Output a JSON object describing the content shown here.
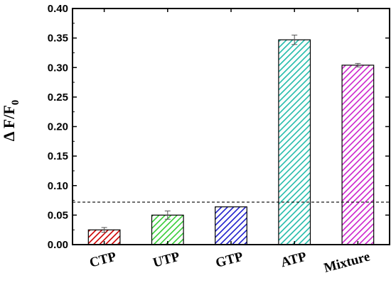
{
  "chart_data": {
    "type": "bar",
    "categories": [
      "CTP",
      "UTP",
      "GTP",
      "ATP",
      "Mixture"
    ],
    "values": [
      0.025,
      0.05,
      0.064,
      0.347,
      0.304
    ],
    "errors": [
      0.004,
      0.007,
      0.0,
      0.008,
      0.003
    ],
    "colors": [
      "#cc0000",
      "#33cc33",
      "#1a1acc",
      "#22bbaa",
      "#cc22cc"
    ],
    "ylabel_main": "Δ F/F",
    "ylabel_sub": "0",
    "ylim": [
      0.0,
      0.4
    ],
    "yticks": [
      "0.00",
      "0.05",
      "0.10",
      "0.15",
      "0.20",
      "0.25",
      "0.30",
      "0.35",
      "0.40"
    ],
    "threshold": 0.072,
    "grid": false,
    "bar_pattern": "diagonal-hatch"
  }
}
